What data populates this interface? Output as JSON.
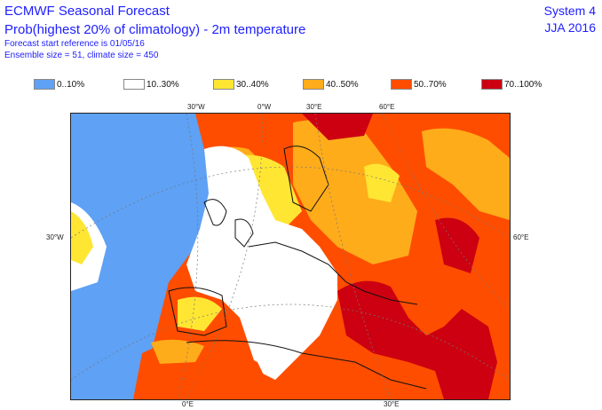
{
  "header": {
    "product": "ECMWF Seasonal Forecast",
    "title": "Prob(highest 20% of climatology) - 2m temperature",
    "forecast_ref": "Forecast start reference is 01/05/16",
    "ensemble": "Ensemble size = 51, climate size = 450",
    "system": "System 4",
    "season": "JJA 2016"
  },
  "legend": [
    {
      "label": "0..10%",
      "color": "#5ea1f5"
    },
    {
      "label": "10..30%",
      "color": "#ffffff"
    },
    {
      "label": "30..40%",
      "color": "#ffe633"
    },
    {
      "label": "40..50%",
      "color": "#ffac1a"
    },
    {
      "label": "50..70%",
      "color": "#ff4d00"
    },
    {
      "label": "70..100%",
      "color": "#cc0011"
    }
  ],
  "map": {
    "top_labels": [
      "30°W",
      "0°W",
      "30°E",
      "60°E"
    ],
    "left_label": "30°W",
    "right_label": "60°E",
    "bottom_labels": [
      "0°E",
      "30°E"
    ]
  }
}
